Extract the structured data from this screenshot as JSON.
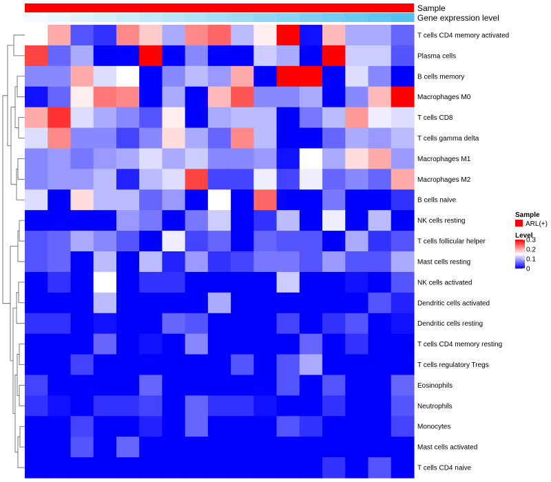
{
  "chart_data": {
    "type": "heatmap",
    "annotations": [
      {
        "label": "Sample",
        "palette": "sample"
      },
      {
        "label": "Gene expression level",
        "palette": "gradient"
      }
    ],
    "rows": [
      "T cells CD4 memory activated",
      "Plasma cells",
      "B cells memory",
      "Macrophages M0",
      "T cells CD8",
      "T cells gamma delta",
      "Macrophages M1",
      "Macrophages M2",
      "B cells naive",
      "NK cells resting",
      "T cells follicular helper",
      "Mast cells resting",
      "NK cells activated",
      "Dendritic cells activated",
      "Dendritic cells resting",
      "T cells CD4 memory resting",
      "T cells regulatory  Tregs",
      "Eosinophils",
      "Neutrophils",
      "Monocytes",
      "Mast cells activated",
      "T cells CD4 naive"
    ],
    "n_columns": 17,
    "values": [
      [
        0.15,
        0.2,
        0.05,
        0.03,
        0.22,
        0.18,
        0.1,
        0.22,
        0.24,
        0.11,
        0.16,
        0.3,
        0.01,
        0.19,
        0.1,
        0.1,
        0.06
      ],
      [
        0.26,
        0.06,
        0.1,
        0.0,
        0.0,
        0.3,
        0.0,
        0.08,
        0.0,
        0.0,
        0.12,
        0.1,
        0.0,
        0.3,
        0.12,
        0.12,
        0.05
      ],
      [
        0.08,
        0.08,
        0.2,
        0.13,
        0.15,
        0.0,
        0.08,
        0.11,
        0.09,
        0.2,
        0.0,
        0.3,
        0.3,
        0.0,
        0.13,
        0.08,
        0.0
      ],
      [
        0.01,
        0.06,
        0.16,
        0.23,
        0.22,
        0.0,
        0.1,
        0.0,
        0.19,
        0.25,
        0.08,
        0.08,
        0.1,
        0.0,
        0.08,
        0.19,
        0.3
      ],
      [
        0.2,
        0.27,
        0.13,
        0.1,
        0.08,
        0.05,
        0.16,
        0.0,
        0.1,
        0.11,
        0.11,
        0.0,
        0.07,
        0.11,
        0.21,
        0.14,
        0.13
      ],
      [
        0.13,
        0.22,
        0.08,
        0.08,
        0.04,
        0.08,
        0.17,
        0.1,
        0.06,
        0.22,
        0.11,
        0.0,
        0.0,
        0.06,
        0.1,
        0.09,
        0.11
      ],
      [
        0.08,
        0.09,
        0.07,
        0.09,
        0.1,
        0.13,
        0.1,
        0.12,
        0.08,
        0.08,
        0.09,
        0.01,
        0.15,
        0.1,
        0.17,
        0.2,
        0.09
      ],
      [
        0.08,
        0.09,
        0.09,
        0.11,
        0.02,
        0.11,
        0.13,
        0.26,
        0.04,
        0.04,
        0.14,
        0.04,
        0.14,
        0.06,
        0.08,
        0.06,
        0.2
      ],
      [
        0.13,
        0.0,
        0.17,
        0.11,
        0.11,
        0.06,
        0.09,
        0.0,
        0.15,
        0.0,
        0.24,
        0.0,
        0.0,
        0.07,
        0.0,
        0.0,
        0.03
      ],
      [
        0.0,
        0.0,
        0.0,
        0.0,
        0.09,
        0.07,
        0.0,
        0.07,
        0.12,
        0.0,
        0.03,
        0.11,
        0.0,
        0.14,
        0.0,
        0.11,
        0.0
      ],
      [
        0.05,
        0.06,
        0.1,
        0.08,
        0.05,
        0.0,
        0.14,
        0.04,
        0.06,
        0.0,
        0.06,
        0.05,
        0.05,
        0.0,
        0.1,
        0.03,
        0.05
      ],
      [
        0.05,
        0.06,
        0.0,
        0.11,
        0.0,
        0.11,
        0.02,
        0.09,
        0.03,
        0.04,
        0.07,
        0.07,
        0.05,
        0.09,
        0.05,
        0.05,
        0.1
      ],
      [
        0.0,
        0.03,
        0.0,
        0.15,
        0.0,
        0.03,
        0.03,
        0.0,
        0.0,
        0.0,
        0.0,
        0.12,
        0.0,
        0.0,
        0.01,
        0.0,
        0.05
      ],
      [
        0.0,
        0.0,
        0.0,
        0.11,
        0.0,
        0.0,
        0.0,
        0.0,
        0.1,
        0.0,
        0.0,
        0.0,
        0.0,
        0.0,
        0.0,
        0.05,
        0.02
      ],
      [
        0.03,
        0.03,
        0.0,
        0.01,
        0.0,
        0.0,
        0.06,
        0.05,
        0.0,
        0.0,
        0.0,
        0.04,
        0.0,
        0.03,
        0.05,
        0.0,
        0.01
      ],
      [
        0.0,
        0.0,
        0.0,
        0.06,
        0.0,
        0.01,
        0.0,
        0.08,
        0.0,
        0.0,
        0.0,
        0.0,
        0.06,
        0.0,
        0.03,
        0.0,
        0.0
      ],
      [
        0.0,
        0.0,
        0.04,
        0.0,
        0.0,
        0.0,
        0.0,
        0.0,
        0.0,
        0.05,
        0.0,
        0.05,
        0.1,
        0.0,
        0.0,
        0.0,
        0.0
      ],
      [
        0.04,
        0.0,
        0.0,
        0.0,
        0.0,
        0.06,
        0.0,
        0.0,
        0.0,
        0.0,
        0.0,
        0.05,
        0.0,
        0.05,
        0.0,
        0.0,
        0.06
      ],
      [
        0.03,
        0.01,
        0.0,
        0.03,
        0.03,
        0.04,
        0.0,
        0.06,
        0.03,
        0.03,
        0.01,
        0.0,
        0.0,
        0.03,
        0.0,
        0.0,
        0.05
      ],
      [
        0.0,
        0.0,
        0.04,
        0.0,
        0.0,
        0.02,
        0.0,
        0.06,
        0.0,
        0.0,
        0.0,
        0.05,
        0.03,
        0.0,
        0.0,
        0.0,
        0.04
      ],
      [
        0.0,
        0.0,
        0.05,
        0.0,
        0.06,
        0.0,
        0.0,
        0.0,
        0.0,
        0.0,
        0.0,
        0.0,
        0.0,
        0.0,
        0.0,
        0.0,
        0.0
      ],
      [
        0.0,
        0.0,
        0.0,
        0.0,
        0.0,
        0.0,
        0.0,
        0.0,
        0.0,
        0.0,
        0.0,
        0.0,
        0.0,
        0.03,
        0.0,
        0.05,
        0.0
      ]
    ],
    "scale": {
      "min": 0,
      "max": 0.3,
      "ticks": [
        0,
        0.1,
        0.2,
        0.3
      ],
      "tick_labels": [
        "0",
        "0.1",
        "0.2",
        "0.3"
      ]
    },
    "legend": {
      "sample_title": "Sample",
      "sample_entry": "ARL(+)",
      "level_title": "Level"
    },
    "colors": {
      "low": "#0000ff",
      "mid": "#ffffff",
      "high": "#ff0000",
      "sample_annotation": "#ff0000",
      "expr_start": "#f4fafd",
      "expr_end": "#55c2f0"
    },
    "dendrogram": "row clustering tree"
  }
}
